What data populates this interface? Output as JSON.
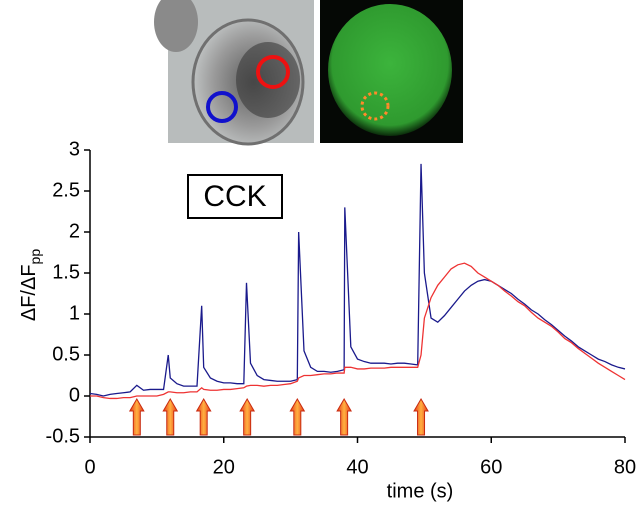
{
  "chart_data": {
    "type": "line",
    "annotation": "CCK",
    "xlabel": "time (s)",
    "ylabel": "ΔF/ΔF",
    "ylabel_subscript": "pp",
    "x": [
      0,
      1,
      2,
      3,
      4,
      5,
      6,
      7,
      8,
      9,
      10,
      11,
      11.7,
      12,
      13,
      14,
      15,
      16,
      16.7,
      17,
      18,
      19,
      20,
      21,
      22,
      23,
      23.4,
      24,
      25,
      26,
      27,
      28,
      29,
      30,
      31,
      31.2,
      32,
      33,
      34,
      35,
      36,
      37,
      38,
      38.1,
      39,
      40,
      41,
      42,
      43,
      44,
      45,
      46,
      47,
      48,
      49,
      49.5,
      50,
      51,
      52,
      53,
      54,
      55,
      56,
      57,
      58,
      59,
      60,
      61,
      62,
      63,
      64,
      65,
      66,
      67,
      68,
      69,
      70,
      71,
      72,
      73,
      74,
      75,
      76,
      77,
      78,
      79,
      80
    ],
    "series": [
      {
        "color": "#1a1a8c",
        "values": [
          0.03,
          0.02,
          0,
          0.02,
          0.03,
          0.04,
          0.05,
          0.13,
          0.07,
          0.08,
          0.08,
          0.08,
          0.5,
          0.22,
          0.15,
          0.12,
          0.12,
          0.12,
          1.1,
          0.35,
          0.22,
          0.18,
          0.16,
          0.16,
          0.15,
          0.15,
          1.38,
          0.4,
          0.25,
          0.2,
          0.19,
          0.18,
          0.18,
          0.18,
          0.2,
          2.0,
          0.55,
          0.35,
          0.3,
          0.3,
          0.29,
          0.3,
          0.32,
          2.3,
          0.6,
          0.45,
          0.42,
          0.4,
          0.4,
          0.4,
          0.39,
          0.4,
          0.4,
          0.39,
          0.38,
          2.83,
          1.5,
          0.95,
          0.9,
          0.98,
          1.08,
          1.18,
          1.28,
          1.35,
          1.4,
          1.42,
          1.4,
          1.35,
          1.3,
          1.25,
          1.18,
          1.12,
          1.05,
          1.0,
          0.93,
          0.87,
          0.8,
          0.73,
          0.67,
          0.6,
          0.55,
          0.5,
          0.45,
          0.42,
          0.38,
          0.35,
          0.33
        ]
      },
      {
        "color": "#ee3333",
        "values": [
          0,
          0,
          -0.02,
          -0.03,
          -0.03,
          -0.02,
          -0.02,
          0,
          0,
          0,
          0,
          0.02,
          0.05,
          0.05,
          0.04,
          0.04,
          0.05,
          0.05,
          0.1,
          0.08,
          0.07,
          0.07,
          0.08,
          0.08,
          0.09,
          0.1,
          0.12,
          0.13,
          0.13,
          0.12,
          0.13,
          0.13,
          0.14,
          0.15,
          0.18,
          0.22,
          0.25,
          0.25,
          0.26,
          0.27,
          0.27,
          0.28,
          0.28,
          0.35,
          0.35,
          0.33,
          0.33,
          0.34,
          0.34,
          0.34,
          0.35,
          0.35,
          0.35,
          0.35,
          0.35,
          0.5,
          0.95,
          1.2,
          1.35,
          1.45,
          1.55,
          1.6,
          1.62,
          1.58,
          1.5,
          1.45,
          1.4,
          1.35,
          1.28,
          1.22,
          1.15,
          1.1,
          1.02,
          0.95,
          0.9,
          0.85,
          0.78,
          0.7,
          0.65,
          0.58,
          0.52,
          0.46,
          0.4,
          0.35,
          0.3,
          0.25,
          0.2
        ]
      }
    ],
    "stimuli": [
      7,
      12,
      17,
      23.5,
      31,
      38,
      49.5
    ],
    "xlim": [
      0,
      80
    ],
    "xticks": [
      0,
      20,
      40,
      60,
      80
    ],
    "ylim": [
      -0.5,
      3
    ],
    "yticks": [
      -0.5,
      0,
      0.5,
      1,
      1.5,
      2,
      2.5,
      3
    ]
  }
}
